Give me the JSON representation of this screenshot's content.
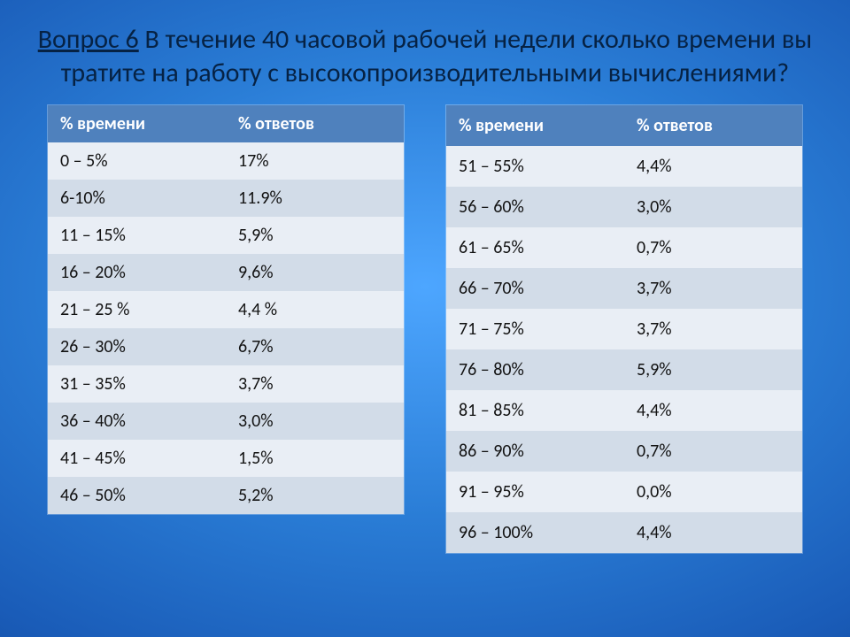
{
  "title": {
    "question_label": "Вопрос 6",
    "text_rest": "  В течение 40 часовой рабочей недели сколько времени вы тратите на работу с высокопроизводительными вычислениями?",
    "fontsize": 30,
    "color": "#062244"
  },
  "colors": {
    "header_bg": "#4f81bd",
    "header_text": "#ffffff",
    "row_odd_bg": "#e9eef5",
    "row_even_bg": "#d2dce8",
    "cell_text": "#111111",
    "background_gradient_center": "#4da6ff",
    "background_gradient_edge": "#052760"
  },
  "fontsize_cell": 20,
  "table_left": {
    "type": "table",
    "columns": [
      "% времени",
      "% ответов"
    ],
    "rows": [
      [
        "0 – 5%",
        "17%"
      ],
      [
        "6-10%",
        "11.9%"
      ],
      [
        "11 – 15%",
        "5,9%"
      ],
      [
        "16 – 20%",
        "9,6%"
      ],
      [
        "21 – 25 %",
        "4,4 %"
      ],
      [
        "26 – 30%",
        "6,7%"
      ],
      [
        "31 – 35%",
        "3,7%"
      ],
      [
        "36 – 40%",
        "3,0%"
      ],
      [
        "41 – 45%",
        "1,5%"
      ],
      [
        "46 – 50%",
        "5,2%"
      ]
    ],
    "col_widths_pct": [
      50,
      50
    ]
  },
  "table_right": {
    "type": "table",
    "columns": [
      "% времени",
      "% ответов"
    ],
    "rows": [
      [
        "51 – 55%",
        "4,4%"
      ],
      [
        "56 – 60%",
        "3,0%"
      ],
      [
        "61 – 65%",
        "0,7%"
      ],
      [
        "66 – 70%",
        "3,7%"
      ],
      [
        "71 – 75%",
        "3,7%"
      ],
      [
        "76 – 80%",
        "5,9%"
      ],
      [
        "81 – 85%",
        "4,4%"
      ],
      [
        "86 – 90%",
        "0,7%"
      ],
      [
        "91 – 95%",
        "0,0%"
      ],
      [
        "96 – 100%",
        "4,4%"
      ]
    ],
    "col_widths_pct": [
      50,
      50
    ]
  }
}
